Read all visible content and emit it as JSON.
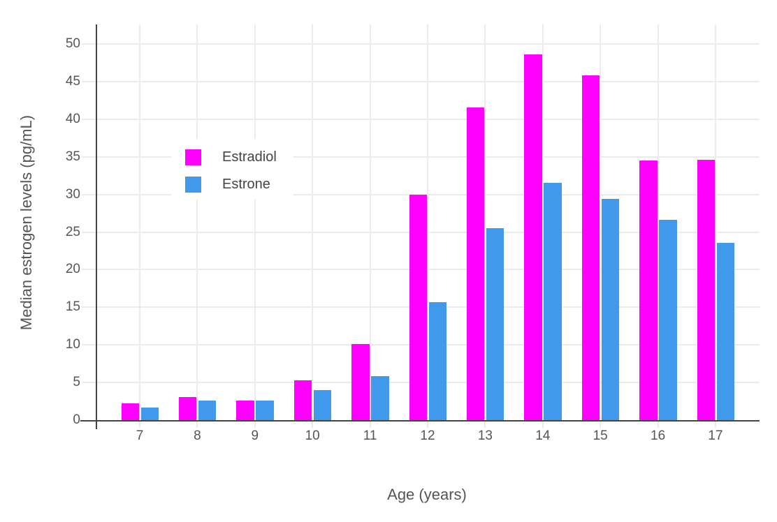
{
  "chart_data": {
    "type": "bar",
    "title": "",
    "xlabel": "Age (years)",
    "ylabel": "Median estrogen levels (pg/mL)",
    "categories": [
      7,
      8,
      9,
      10,
      11,
      12,
      13,
      14,
      15,
      16,
      17
    ],
    "series": [
      {
        "name": "Estradiol",
        "color": "#FF00FF",
        "values": [
          2.2,
          3.1,
          2.6,
          5.3,
          10.1,
          30.0,
          41.6,
          48.6,
          45.8,
          34.5,
          34.6
        ]
      },
      {
        "name": "Estrone",
        "color": "#4199EB",
        "values": [
          1.7,
          2.6,
          2.6,
          4.0,
          5.8,
          15.7,
          25.5,
          31.5,
          29.4,
          26.6,
          23.6
        ]
      }
    ],
    "ylim": [
      0,
      52.6
    ],
    "yticks": [
      0,
      5,
      10,
      15,
      20,
      25,
      30,
      35,
      40,
      45,
      50
    ],
    "grid": true,
    "legend_position": "inside-top-left",
    "colors": {
      "background": "#ffffff",
      "axis_line": "#444444",
      "gridline": "#EBEBEB",
      "tick_label": "#555555",
      "axis_title": "#555555",
      "legend_text": "#444444"
    }
  }
}
